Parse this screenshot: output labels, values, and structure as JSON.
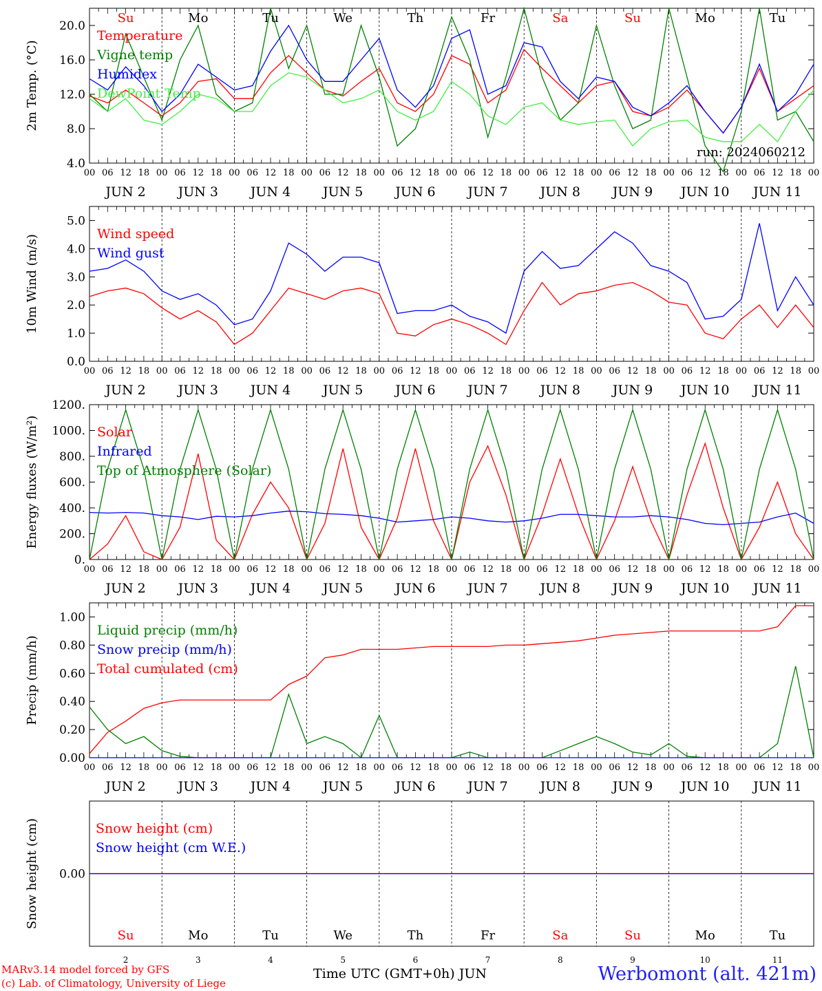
{
  "chart_data": [
    {
      "type": "line",
      "ylabel": "2m Temp. (°C)",
      "ylim": [
        4,
        22
      ],
      "yticks": [
        "4.0",
        "8.0",
        "12.0",
        "16.0",
        "20.0"
      ],
      "ytick_values": [
        4,
        8,
        12,
        16,
        20
      ],
      "run_label": "run: 2024060212",
      "weekday_labels": [
        "Su",
        "Mo",
        "Tu",
        "We",
        "Th",
        "Fr",
        "Sa",
        "Su",
        "Mo",
        "Tu"
      ],
      "x_hours": [
        0,
        6,
        12,
        18,
        24,
        30,
        36,
        42,
        48,
        54,
        60,
        66,
        72,
        78,
        84,
        90,
        96,
        102,
        108,
        114,
        120,
        126,
        132,
        138,
        144,
        150,
        156,
        162,
        168,
        174,
        180,
        186,
        192,
        198,
        204,
        210,
        216,
        222,
        228,
        234,
        240
      ],
      "series": [
        {
          "name": "Temperature",
          "color": "#ff0000",
          "values": [
            11.8,
            11.0,
            12.5,
            11.0,
            9.5,
            11.0,
            13.5,
            13.8,
            11.5,
            11.5,
            14.5,
            16.5,
            14.5,
            12.5,
            11.8,
            13.5,
            15.0,
            11.0,
            10.0,
            12.0,
            16.5,
            15.5,
            11.0,
            12.5,
            17.2,
            15.0,
            13.0,
            11.0,
            13.0,
            13.5,
            10.0,
            9.5,
            10.5,
            12.5,
            10.0,
            7.5,
            10.5,
            15.0,
            10.0,
            11.5,
            13.0
          ]
        },
        {
          "name": "Vigne temp",
          "color": "#008000",
          "values": [
            12.0,
            10.0,
            19.0,
            14.0,
            9.0,
            16.0,
            20.0,
            12.0,
            10.0,
            11.0,
            22.0,
            15.0,
            20.0,
            12.0,
            12.0,
            20.0,
            14.0,
            6.0,
            8.0,
            14.0,
            21.0,
            16.0,
            7.0,
            14.0,
            22.0,
            14.0,
            9.0,
            11.0,
            20.0,
            13.0,
            8.0,
            9.0,
            22.0,
            14.0,
            6.0,
            3.0,
            10.0,
            22.0,
            9.0,
            10.0,
            6.5
          ]
        },
        {
          "name": "Humidex",
          "color": "#0000ff",
          "values": [
            13.8,
            12.5,
            15.2,
            13.0,
            10.0,
            12.0,
            15.5,
            14.0,
            12.5,
            13.0,
            17.0,
            20.0,
            16.0,
            13.5,
            13.5,
            16.0,
            18.5,
            12.5,
            10.5,
            13.0,
            18.5,
            19.5,
            12.0,
            13.0,
            18.0,
            17.5,
            13.5,
            11.5,
            14.0,
            13.5,
            10.5,
            9.5,
            11.0,
            13.0,
            10.0,
            7.5,
            10.5,
            15.5,
            10.0,
            12.0,
            15.5
          ]
        },
        {
          "name": "DewPoint Temp",
          "color": "#44ee44",
          "values": [
            11.5,
            10.0,
            11.5,
            9.0,
            8.5,
            10.0,
            12.0,
            11.5,
            10.0,
            10.0,
            13.0,
            14.5,
            14.0,
            12.5,
            11.0,
            11.5,
            12.5,
            10.0,
            9.0,
            10.0,
            13.5,
            12.0,
            9.5,
            8.5,
            10.5,
            11.0,
            9.0,
            8.5,
            8.8,
            9.0,
            6.0,
            8.0,
            8.8,
            9.0,
            7.0,
            6.5,
            6.5,
            8.5,
            6.5,
            10.0,
            12.5
          ]
        }
      ]
    },
    {
      "type": "line",
      "ylabel": "10m Wind (m/s)",
      "ylim": [
        0,
        5.5
      ],
      "yticks": [
        "0.0",
        "1.0",
        "2.0",
        "3.0",
        "4.0",
        "5.0"
      ],
      "ytick_values": [
        0,
        1,
        2,
        3,
        4,
        5
      ],
      "x_hours": [
        0,
        6,
        12,
        18,
        24,
        30,
        36,
        42,
        48,
        54,
        60,
        66,
        72,
        78,
        84,
        90,
        96,
        102,
        108,
        114,
        120,
        126,
        132,
        138,
        144,
        150,
        156,
        162,
        168,
        174,
        180,
        186,
        192,
        198,
        204,
        210,
        216,
        222,
        228,
        234,
        240
      ],
      "series": [
        {
          "name": "Wind speed",
          "color": "#ff0000",
          "values": [
            2.3,
            2.5,
            2.6,
            2.4,
            1.9,
            1.5,
            1.8,
            1.4,
            0.6,
            1.0,
            1.8,
            2.6,
            2.4,
            2.2,
            2.5,
            2.6,
            2.4,
            1.0,
            0.9,
            1.3,
            1.5,
            1.3,
            1.0,
            0.6,
            1.8,
            2.8,
            2.0,
            2.4,
            2.5,
            2.7,
            2.8,
            2.5,
            2.1,
            2.0,
            1.0,
            0.8,
            1.5,
            2.0,
            1.2,
            2.0,
            1.2
          ]
        },
        {
          "name": "Wind gust",
          "color": "#0000ff",
          "values": [
            3.2,
            3.3,
            3.6,
            3.2,
            2.5,
            2.2,
            2.4,
            2.0,
            1.3,
            1.5,
            2.5,
            4.2,
            3.8,
            3.2,
            3.7,
            3.7,
            3.5,
            1.7,
            1.8,
            1.8,
            2.0,
            1.6,
            1.4,
            1.0,
            3.2,
            3.9,
            3.3,
            3.4,
            4.0,
            4.6,
            4.2,
            3.4,
            3.2,
            2.8,
            1.5,
            1.6,
            2.2,
            4.9,
            1.8,
            3.0,
            2.0
          ]
        }
      ]
    },
    {
      "type": "line",
      "ylabel": "Energy fluxes (W/m²)",
      "ylim": [
        0,
        1200
      ],
      "yticks": [
        "0.",
        "200.",
        "400.",
        "600.",
        "800.",
        "1000.",
        "1200."
      ],
      "ytick_values": [
        0,
        200,
        400,
        600,
        800,
        1000,
        1200
      ],
      "x_hours": [
        0,
        6,
        12,
        18,
        24,
        30,
        36,
        42,
        48,
        54,
        60,
        66,
        72,
        78,
        84,
        90,
        96,
        102,
        108,
        114,
        120,
        126,
        132,
        138,
        144,
        150,
        156,
        162,
        168,
        174,
        180,
        186,
        192,
        198,
        204,
        210,
        216,
        222,
        228,
        234,
        240
      ],
      "series": [
        {
          "name": "Solar",
          "color": "#ff0000",
          "values": [
            0,
            120,
            340,
            60,
            0,
            250,
            820,
            150,
            0,
            350,
            600,
            400,
            0,
            280,
            860,
            250,
            0,
            320,
            860,
            300,
            0,
            600,
            880,
            500,
            0,
            350,
            780,
            350,
            0,
            300,
            720,
            300,
            0,
            500,
            900,
            400,
            0,
            250,
            600,
            200,
            0
          ]
        },
        {
          "name": "Infrared",
          "color": "#0000ff",
          "values": [
            365,
            360,
            365,
            360,
            340,
            330,
            310,
            335,
            330,
            340,
            360,
            375,
            370,
            355,
            350,
            340,
            320,
            290,
            300,
            310,
            330,
            320,
            300,
            290,
            300,
            320,
            350,
            350,
            340,
            330,
            330,
            340,
            330,
            310,
            280,
            270,
            280,
            290,
            330,
            360,
            280
          ]
        },
        {
          "name": "Top of Atmosphere (Solar)",
          "color": "#008000",
          "values": [
            0,
            700,
            1160,
            700,
            0,
            700,
            1160,
            700,
            0,
            700,
            1160,
            700,
            0,
            700,
            1160,
            700,
            0,
            700,
            1160,
            700,
            0,
            700,
            1160,
            700,
            0,
            700,
            1160,
            700,
            0,
            700,
            1160,
            700,
            0,
            700,
            1160,
            700,
            0,
            700,
            1160,
            700,
            0
          ]
        }
      ]
    },
    {
      "type": "line",
      "ylabel": "Precip (mm/h)",
      "ylim": [
        0,
        1.1
      ],
      "yticks": [
        "0.00",
        "0.20",
        "0.40",
        "0.60",
        "0.80",
        "1.00"
      ],
      "ytick_values": [
        0,
        0.2,
        0.4,
        0.6,
        0.8,
        1.0
      ],
      "x_hours": [
        0,
        6,
        12,
        18,
        24,
        30,
        36,
        42,
        48,
        54,
        60,
        66,
        72,
        78,
        84,
        90,
        96,
        102,
        108,
        114,
        120,
        126,
        132,
        138,
        144,
        150,
        156,
        162,
        168,
        174,
        180,
        186,
        192,
        198,
        204,
        210,
        216,
        222,
        228,
        234,
        240
      ],
      "series": [
        {
          "name": "Liquid precip (mm/h)",
          "color": "#008000",
          "values": [
            0.36,
            0.2,
            0.1,
            0.15,
            0.05,
            0.01,
            0.0,
            0.0,
            0.0,
            0.0,
            0.0,
            0.45,
            0.1,
            0.15,
            0.1,
            0.0,
            0.3,
            0.0,
            0.0,
            0.0,
            0.0,
            0.04,
            0.0,
            0.0,
            0.0,
            0.0,
            0.05,
            0.1,
            0.15,
            0.1,
            0.04,
            0.02,
            0.1,
            0.01,
            0.0,
            0.0,
            0.0,
            0.0,
            0.1,
            0.65,
            0.0
          ]
        },
        {
          "name": "Snow precip (mm/h)",
          "color": "#0000ff",
          "values": [
            0,
            0,
            0,
            0,
            0,
            0,
            0,
            0,
            0,
            0,
            0,
            0,
            0,
            0,
            0,
            0,
            0,
            0,
            0,
            0,
            0,
            0,
            0,
            0,
            0,
            0,
            0,
            0,
            0,
            0,
            0,
            0,
            0,
            0,
            0,
            0,
            0,
            0,
            0,
            0,
            0
          ]
        },
        {
          "name": "Total cumulated (cm)",
          "color": "#ff0000",
          "values": [
            0.03,
            0.18,
            0.26,
            0.35,
            0.39,
            0.41,
            0.41,
            0.41,
            0.41,
            0.41,
            0.41,
            0.52,
            0.58,
            0.71,
            0.73,
            0.77,
            0.77,
            0.77,
            0.78,
            0.79,
            0.79,
            0.79,
            0.79,
            0.8,
            0.8,
            0.81,
            0.82,
            0.83,
            0.85,
            0.87,
            0.88,
            0.89,
            0.9,
            0.9,
            0.9,
            0.9,
            0.9,
            0.9,
            0.93,
            1.08,
            1.08
          ]
        }
      ]
    },
    {
      "type": "line",
      "ylabel": "Snow height (cm)",
      "ylim": [
        -1,
        1
      ],
      "yticks": [
        "0.00"
      ],
      "ytick_values": [
        0
      ],
      "weekday_labels": [
        "Su",
        "Mo",
        "Tu",
        "We",
        "Th",
        "Fr",
        "Sa",
        "Su",
        "Mo",
        "Tu"
      ],
      "day_numbers": [
        "2",
        "3",
        "4",
        "5",
        "6",
        "7",
        "8",
        "9",
        "10",
        "11"
      ],
      "series": [
        {
          "name": "Snow height (cm)",
          "color": "#ff0000",
          "values": [
            0,
            0
          ]
        },
        {
          "name": "Snow height (cm W.E.)",
          "color": "#0000ff",
          "values": [
            0,
            0
          ]
        }
      ]
    }
  ],
  "axis": {
    "hour_ticks": [
      "00",
      "06",
      "12",
      "18"
    ],
    "date_labels": [
      "JUN  2",
      "JUN  3",
      "JUN  4",
      "JUN  5",
      "JUN  6",
      "JUN  7",
      "JUN  8",
      "JUN  9",
      "JUN 10",
      "JUN 11"
    ],
    "xlabel": "Time UTC (GMT+0h)",
    "month": "JUN",
    "weekend_color": "#ff0000",
    "weekday_color": "#000000"
  },
  "footer": {
    "credit_line1": "MARv3.14 model forced by GFS",
    "credit_line2": "(c) Lab. of Climatology, University of Liege",
    "station": "Werbomont (alt. 421m)"
  }
}
